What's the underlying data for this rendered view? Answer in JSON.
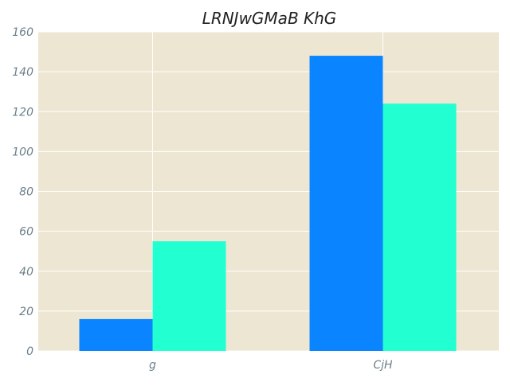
{
  "chart_data": {
    "type": "bar",
    "title": "LRNJwGMaB KhG",
    "xlabel": "",
    "ylabel": "",
    "categories": [
      "g",
      "CjH"
    ],
    "series": [
      {
        "values": [
          16,
          148
        ],
        "color": "#0a84ff"
      },
      {
        "values": [
          55,
          124
        ],
        "color": "#22ffd0"
      }
    ],
    "ylim": [
      0,
      160
    ],
    "yticks": [
      0,
      20,
      40,
      60,
      80,
      100,
      120,
      140,
      160
    ],
    "grid": true,
    "legend": "none",
    "colors": {
      "plot_background": "#ede6d2",
      "grid": "#ffffff",
      "tick_text": "#6c7f8a",
      "title_text": "#222222"
    }
  }
}
